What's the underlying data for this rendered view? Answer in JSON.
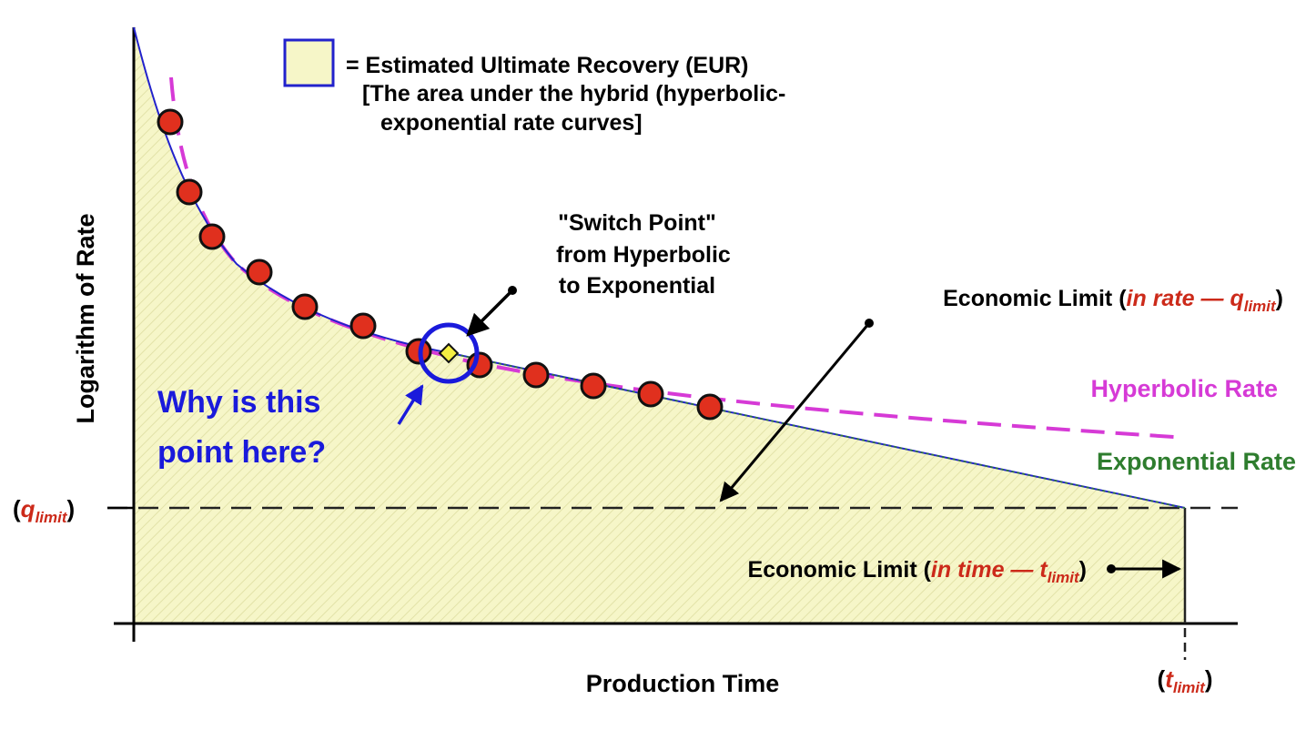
{
  "legend": {
    "line1": "= Estimated Ultimate Recovery (EUR)",
    "line2": "[The area under the hybrid (hyperbolic-",
    "line3": "exponential rate curves]"
  },
  "switch_point": {
    "line1": "\"Switch Point\"",
    "line2": "from Hyperbolic",
    "line3": "to Exponential"
  },
  "question": {
    "line1": "Why is this",
    "line2": "point here?"
  },
  "econ_rate": {
    "prefix": "Economic Limit (",
    "em": "in rate — q",
    "sub": "limit",
    "suffix": ")"
  },
  "econ_time": {
    "prefix": "Economic Limit (",
    "em": "in time — t",
    "sub": "limit",
    "suffix": ")"
  },
  "hyperbolic_label": "Hyperbolic Rate",
  "exponential_label": "Exponential Rate",
  "q_limit": {
    "open": "(",
    "q": "q",
    "sub": "limit",
    "close": ")"
  },
  "t_limit": {
    "open": "(",
    "t": "t",
    "sub": "limit",
    "close": ")"
  },
  "x_axis_label": "Production Time",
  "y_axis_label": "Logarithm of Rate",
  "colors": {
    "fill": "#f6f6c8",
    "hyperbolic": "#d63ad6",
    "exponential": "#2e7d2e",
    "hybrid_curve": "#2222cc",
    "data_point": "#e0301e",
    "callout_blue": "#1a1adb",
    "limit_red": "#cc2a1a",
    "switch_marker": "#f5ef42"
  },
  "icons": {
    "eur_legend": "square-swatch-icon",
    "switch_marker": "diamond-icon",
    "switch_circle": "circle-highlight-icon"
  }
}
